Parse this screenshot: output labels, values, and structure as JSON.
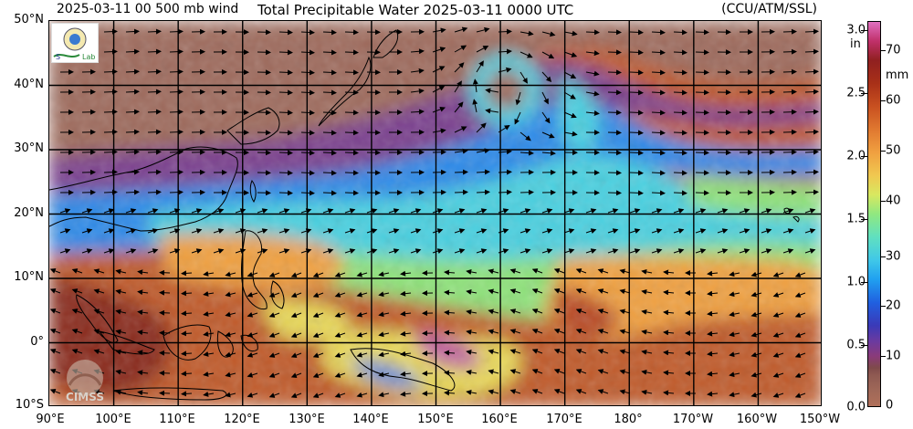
{
  "header": {
    "left": "2025-03-11 00 500 mb wind",
    "center": "Total Precipitable Water  2025-03-11 0000 UTC",
    "right": "(CCU/ATM/SSL)"
  },
  "lat_labels": [
    "50°N",
    "40°N",
    "30°N",
    "20°N",
    "10°N",
    "0°",
    "10°S"
  ],
  "lon_labels": [
    "90°E",
    "100°E",
    "110°E",
    "120°E",
    "130°E",
    "140°E",
    "150°E",
    "160°E",
    "170°E",
    "180°",
    "170°W",
    "160°W",
    "150°W"
  ],
  "colorbar": {
    "unit_in": "in",
    "unit_mm": "mm",
    "in_ticks": [
      "3.0",
      "2.5",
      "2.0",
      "1.5",
      "1.0",
      "0.5",
      "0.0"
    ],
    "mm_ticks": [
      "70",
      "60",
      "50",
      "40",
      "30",
      "20",
      "10",
      "0"
    ]
  },
  "logos": {
    "cimss": "CIMSS",
    "lab": "Lab"
  },
  "colors": {
    "dry": "#9e6a5c",
    "very_dry": "#7a3f7a",
    "purple": "#6a3aa0",
    "blue": "#2f8ae8",
    "cyan": "#4ad0e0",
    "green": "#8ee27a",
    "yellow": "#e8d858",
    "orange": "#f0a040",
    "red_brown": "#b84a28",
    "magenta": "#c060a0"
  }
}
